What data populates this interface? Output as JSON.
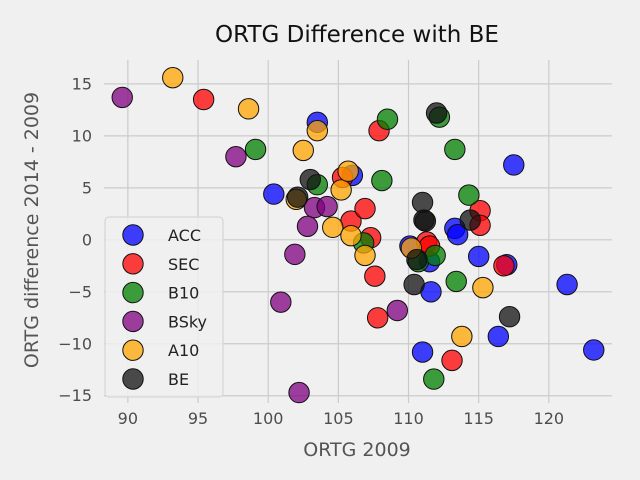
{
  "chart_data": {
    "type": "scatter",
    "title": "ORTG Difference with BE",
    "xlabel": "ORTG 2009",
    "ylabel": "ORTG difference 2014 - 2009",
    "xlim": [
      88.3,
      124.5
    ],
    "ylim": [
      -15.7,
      17.3
    ],
    "xticks": [
      90,
      95,
      100,
      105,
      110,
      115,
      120
    ],
    "yticks": [
      -15,
      -10,
      -5,
      0,
      5,
      10,
      15
    ],
    "grid": true,
    "legend_position": "lower-left",
    "series": [
      {
        "name": "ACC",
        "color": "#0000ff",
        "points": [
          {
            "x": 100.4,
            "y": 4.4
          },
          {
            "x": 103.5,
            "y": 11.3
          },
          {
            "x": 106.0,
            "y": 6.2
          },
          {
            "x": 110.1,
            "y": -0.6
          },
          {
            "x": 111.0,
            "y": -10.8
          },
          {
            "x": 111.5,
            "y": -2.1
          },
          {
            "x": 111.6,
            "y": -5.0
          },
          {
            "x": 113.3,
            "y": 1.1
          },
          {
            "x": 113.5,
            "y": 0.5
          },
          {
            "x": 115.0,
            "y": -1.6
          },
          {
            "x": 116.4,
            "y": -9.3
          },
          {
            "x": 117.0,
            "y": -2.4
          },
          {
            "x": 117.5,
            "y": 7.2
          },
          {
            "x": 121.3,
            "y": -4.3
          },
          {
            "x": 123.2,
            "y": -10.6
          }
        ]
      },
      {
        "name": "SEC",
        "color": "#ff0000",
        "points": [
          {
            "x": 95.4,
            "y": 13.5
          },
          {
            "x": 105.3,
            "y": 6.0
          },
          {
            "x": 105.9,
            "y": 1.8
          },
          {
            "x": 106.9,
            "y": 3.0
          },
          {
            "x": 107.3,
            "y": 0.2
          },
          {
            "x": 107.6,
            "y": -3.5
          },
          {
            "x": 107.8,
            "y": -7.5
          },
          {
            "x": 107.9,
            "y": 10.5
          },
          {
            "x": 111.3,
            "y": -0.2
          },
          {
            "x": 111.5,
            "y": -0.6
          },
          {
            "x": 113.1,
            "y": -11.6
          },
          {
            "x": 115.1,
            "y": 2.8
          },
          {
            "x": 115.1,
            "y": 1.4
          },
          {
            "x": 116.8,
            "y": -2.5
          }
        ]
      },
      {
        "name": "B10",
        "color": "#008000",
        "points": [
          {
            "x": 99.1,
            "y": 8.7
          },
          {
            "x": 103.5,
            "y": 5.3
          },
          {
            "x": 106.8,
            "y": -0.3
          },
          {
            "x": 108.1,
            "y": 5.7
          },
          {
            "x": 108.5,
            "y": 11.6
          },
          {
            "x": 110.7,
            "y": -2.1
          },
          {
            "x": 111.9,
            "y": -1.5
          },
          {
            "x": 111.8,
            "y": -13.4
          },
          {
            "x": 112.2,
            "y": 11.8
          },
          {
            "x": 113.3,
            "y": 8.7
          },
          {
            "x": 113.4,
            "y": -4.0
          },
          {
            "x": 114.3,
            "y": 4.3
          }
        ]
      },
      {
        "name": "BSky",
        "color": "#800080",
        "points": [
          {
            "x": 89.6,
            "y": 13.7
          },
          {
            "x": 97.7,
            "y": 8.0
          },
          {
            "x": 100.9,
            "y": -6.0
          },
          {
            "x": 101.9,
            "y": -1.4
          },
          {
            "x": 102.2,
            "y": -14.7
          },
          {
            "x": 102.8,
            "y": 1.3
          },
          {
            "x": 103.3,
            "y": 3.1
          },
          {
            "x": 104.2,
            "y": 3.2
          },
          {
            "x": 109.2,
            "y": -6.8
          }
        ]
      },
      {
        "name": "A10",
        "color": "#ffa500",
        "points": [
          {
            "x": 93.2,
            "y": 15.6
          },
          {
            "x": 98.6,
            "y": 12.6
          },
          {
            "x": 102.0,
            "y": 3.9
          },
          {
            "x": 102.5,
            "y": 8.6
          },
          {
            "x": 103.5,
            "y": 10.5
          },
          {
            "x": 104.6,
            "y": 1.2
          },
          {
            "x": 105.2,
            "y": 4.8
          },
          {
            "x": 105.7,
            "y": 6.6
          },
          {
            "x": 105.9,
            "y": 0.4
          },
          {
            "x": 106.9,
            "y": -1.5
          },
          {
            "x": 110.2,
            "y": -0.8
          },
          {
            "x": 113.8,
            "y": -9.3
          },
          {
            "x": 115.3,
            "y": -4.6
          }
        ]
      },
      {
        "name": "BE",
        "color": "#111111",
        "points": [
          {
            "x": 102.1,
            "y": 4.1
          },
          {
            "x": 103.0,
            "y": 5.8
          },
          {
            "x": 110.4,
            "y": -4.3
          },
          {
            "x": 110.6,
            "y": -1.9
          },
          {
            "x": 111.0,
            "y": 3.6
          },
          {
            "x": 111.1,
            "y": 1.9
          },
          {
            "x": 111.2,
            "y": 1.8
          },
          {
            "x": 112.0,
            "y": 12.2
          },
          {
            "x": 114.4,
            "y": 1.9
          },
          {
            "x": 117.2,
            "y": -7.4
          }
        ]
      }
    ]
  }
}
